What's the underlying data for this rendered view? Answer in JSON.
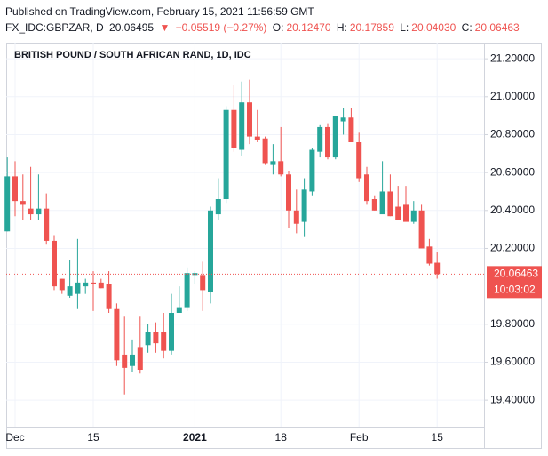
{
  "header": {
    "published": "Published on TradingView.com, February 15, 2021 11:56:59 GMT",
    "symbol": "FX_IDC:GBPZAR, D",
    "price": "20.06495",
    "arrow": "▼",
    "change": "−0.05519 (−0.27%)",
    "o_label": "O:",
    "o": "20.12470",
    "h_label": "H:",
    "h": "20.17859",
    "l_label": "L:",
    "l": "20.04030",
    "c_label": "C:",
    "c": "20.06463"
  },
  "chart_data": {
    "type": "candlestick",
    "title": "BRITISH POUND / SOUTH AFRICAN RAND, 1D, IDC",
    "categories": [
      null,
      "Dec",
      null,
      null,
      null,
      null,
      null,
      null,
      null,
      null,
      null,
      "15",
      null,
      null,
      null,
      null,
      null,
      null,
      null,
      null,
      null,
      null,
      null,
      null,
      "2021",
      null,
      null,
      null,
      null,
      null,
      null,
      null,
      null,
      null,
      null,
      "18",
      null,
      null,
      null,
      null,
      null,
      null,
      null,
      null,
      null,
      "Feb",
      null,
      null,
      null,
      null,
      null,
      null,
      null,
      null,
      null,
      "15"
    ],
    "open": [
      20.29,
      20.58,
      20.45,
      20.41,
      20.38,
      20.41,
      20.24,
      20.04,
      19.95,
      19.96,
      20.0,
      20.02,
      20.02,
      20.01,
      19.88,
      19.64,
      19.58,
      19.68,
      19.69,
      19.76,
      19.76,
      19.66,
      19.86,
      19.89,
      20.06,
      20.06,
      19.97,
      20.38,
      20.46,
      20.93,
      20.72,
      20.97,
      20.79,
      20.78,
      20.64,
      20.66,
      20.59,
      20.4,
      20.34,
      20.5,
      20.71,
      20.84,
      20.68,
      20.87,
      20.89,
      20.76,
      20.59,
      20.46,
      20.38,
      20.5,
      20.42,
      20.43,
      20.34,
      20.4,
      20.21,
      20.1247
    ],
    "high": [
      20.68,
      20.66,
      20.59,
      20.63,
      20.59,
      20.49,
      20.27,
      20.04,
      20.14,
      20.25,
      20.04,
      20.08,
      20.04,
      20.08,
      19.91,
      19.84,
      19.72,
      19.84,
      19.8,
      19.81,
      19.86,
      19.96,
      20.0,
      20.1,
      20.08,
      20.13,
      20.42,
      20.57,
      20.95,
      21.06,
      21.08,
      21.09,
      20.93,
      20.79,
      20.75,
      20.84,
      20.61,
      20.51,
      20.57,
      20.73,
      20.85,
      20.86,
      20.9,
      20.94,
      20.94,
      20.81,
      20.63,
      20.48,
      20.66,
      20.59,
      20.53,
      20.53,
      20.45,
      20.43,
      20.25,
      20.17859
    ],
    "low": [
      20.29,
      20.37,
      20.35,
      20.35,
      20.35,
      20.22,
      19.98,
      19.96,
      19.94,
      19.88,
      19.96,
      19.87,
      19.99,
      19.86,
      19.58,
      19.43,
      19.55,
      19.54,
      19.65,
      19.65,
      19.62,
      19.64,
      19.88,
      19.87,
      20.01,
      19.87,
      19.91,
      20.35,
      20.44,
      20.71,
      20.69,
      20.75,
      20.76,
      20.64,
      20.59,
      20.58,
      20.31,
      20.28,
      20.26,
      20.48,
      20.68,
      20.67,
      20.67,
      20.8,
      20.76,
      20.55,
      20.43,
      20.4,
      20.39,
      20.37,
      20.35,
      20.35,
      20.33,
      20.21,
      20.11,
      20.0403
    ],
    "close": [
      20.58,
      20.45,
      20.43,
      20.38,
      20.41,
      20.24,
      20.0,
      19.98,
      20.0,
      20.02,
      20.02,
      20.01,
      19.99,
      19.88,
      19.61,
      19.57,
      19.64,
      19.56,
      19.76,
      19.7,
      19.66,
      19.86,
      19.89,
      20.07,
      20.07,
      19.98,
      20.4,
      20.46,
      20.93,
      20.73,
      20.97,
      20.79,
      20.77,
      20.65,
      20.66,
      20.59,
      20.4,
      20.33,
      20.51,
      20.72,
      20.84,
      20.68,
      20.9,
      20.89,
      20.76,
      20.57,
      20.45,
      20.4,
      20.5,
      20.37,
      20.35,
      20.34,
      20.4,
      20.2,
      20.12,
      20.06463
    ],
    "up_color": "#26a69a",
    "down_color": "#ef5350",
    "ylim": [
      19.26,
      21.285
    ],
    "yticks": [
      {
        "value": 21.2,
        "label": "21.20000"
      },
      {
        "value": 21.0,
        "label": "21.00000"
      },
      {
        "value": 20.8,
        "label": "20.80000"
      },
      {
        "value": 20.6,
        "label": "20.60000"
      },
      {
        "value": 20.4,
        "label": "20.40000"
      },
      {
        "value": 20.2,
        "label": "20.20000"
      },
      {
        "value": 19.8,
        "label": "19.80000"
      },
      {
        "value": 19.6,
        "label": "19.60000"
      },
      {
        "value": 19.4,
        "label": "19.40000"
      }
    ],
    "grid": true,
    "last_price_label": "20.06463",
    "countdown": "10:03:02"
  }
}
